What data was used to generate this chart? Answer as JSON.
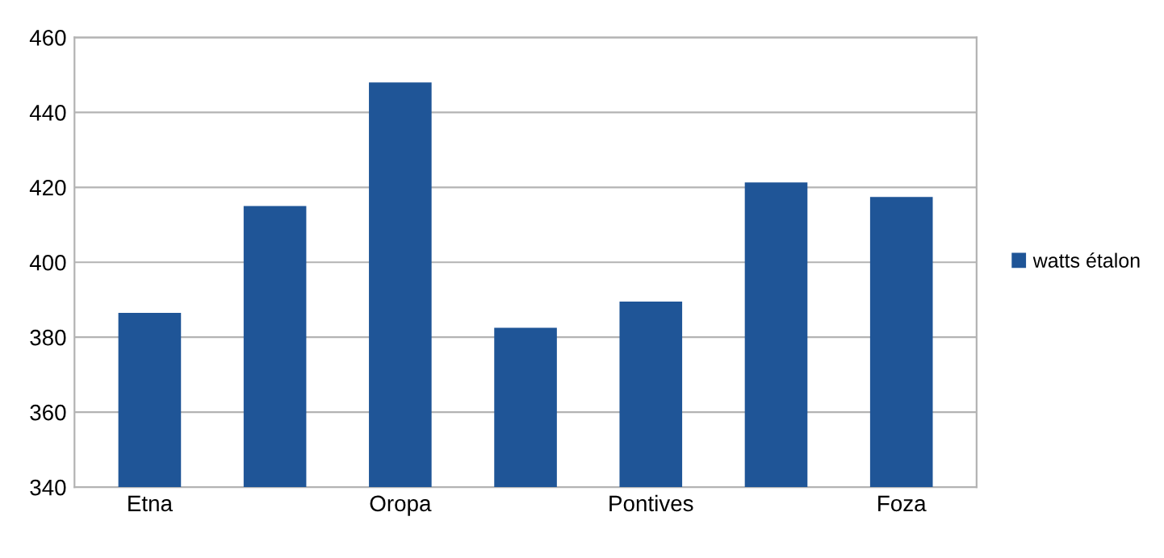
{
  "chart_data": {
    "type": "bar",
    "categories": [
      "Etna",
      null,
      "Oropa",
      null,
      "Pontives",
      null,
      "Foza"
    ],
    "series": [
      {
        "name": "watts étalon",
        "color": "#1f5597",
        "values": [
          386.5,
          415,
          448,
          382.5,
          389.5,
          421.3,
          417.4
        ]
      }
    ],
    "ylim": [
      340,
      460
    ],
    "yticks": [
      340,
      360,
      380,
      400,
      420,
      440,
      460
    ],
    "grid": "y",
    "legend": "right"
  }
}
